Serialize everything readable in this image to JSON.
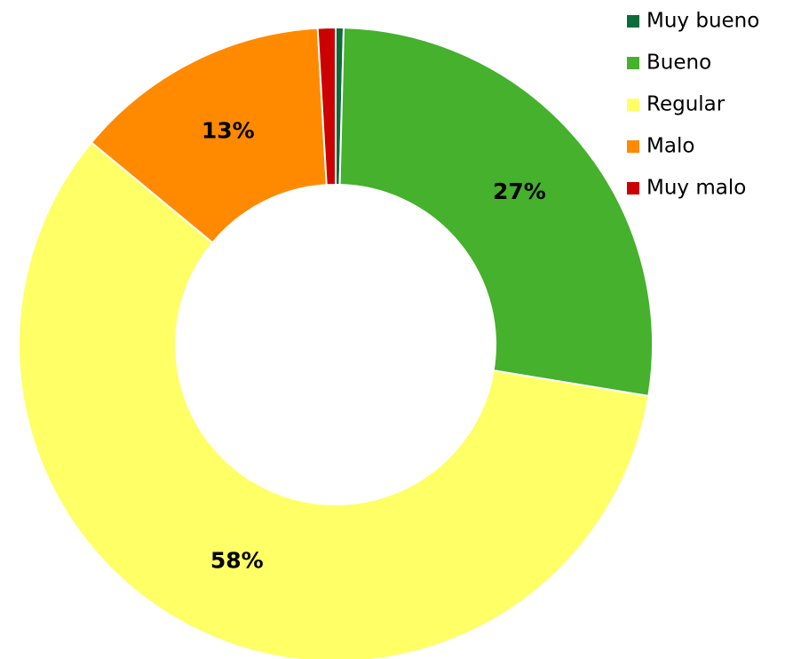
{
  "chart_data": {
    "type": "donut",
    "categories": [
      "Muy bueno",
      "Bueno",
      "Regular",
      "Malo",
      "Muy malo"
    ],
    "values": [
      0.4,
      27,
      58,
      13,
      0.9
    ],
    "value_labels": [
      null,
      "27%",
      "58%",
      "13%",
      null
    ],
    "colors": [
      "#0b6b3a",
      "#45b12c",
      "#ffff66",
      "#ff8a00",
      "#cc0000"
    ],
    "legend": "top-right"
  }
}
